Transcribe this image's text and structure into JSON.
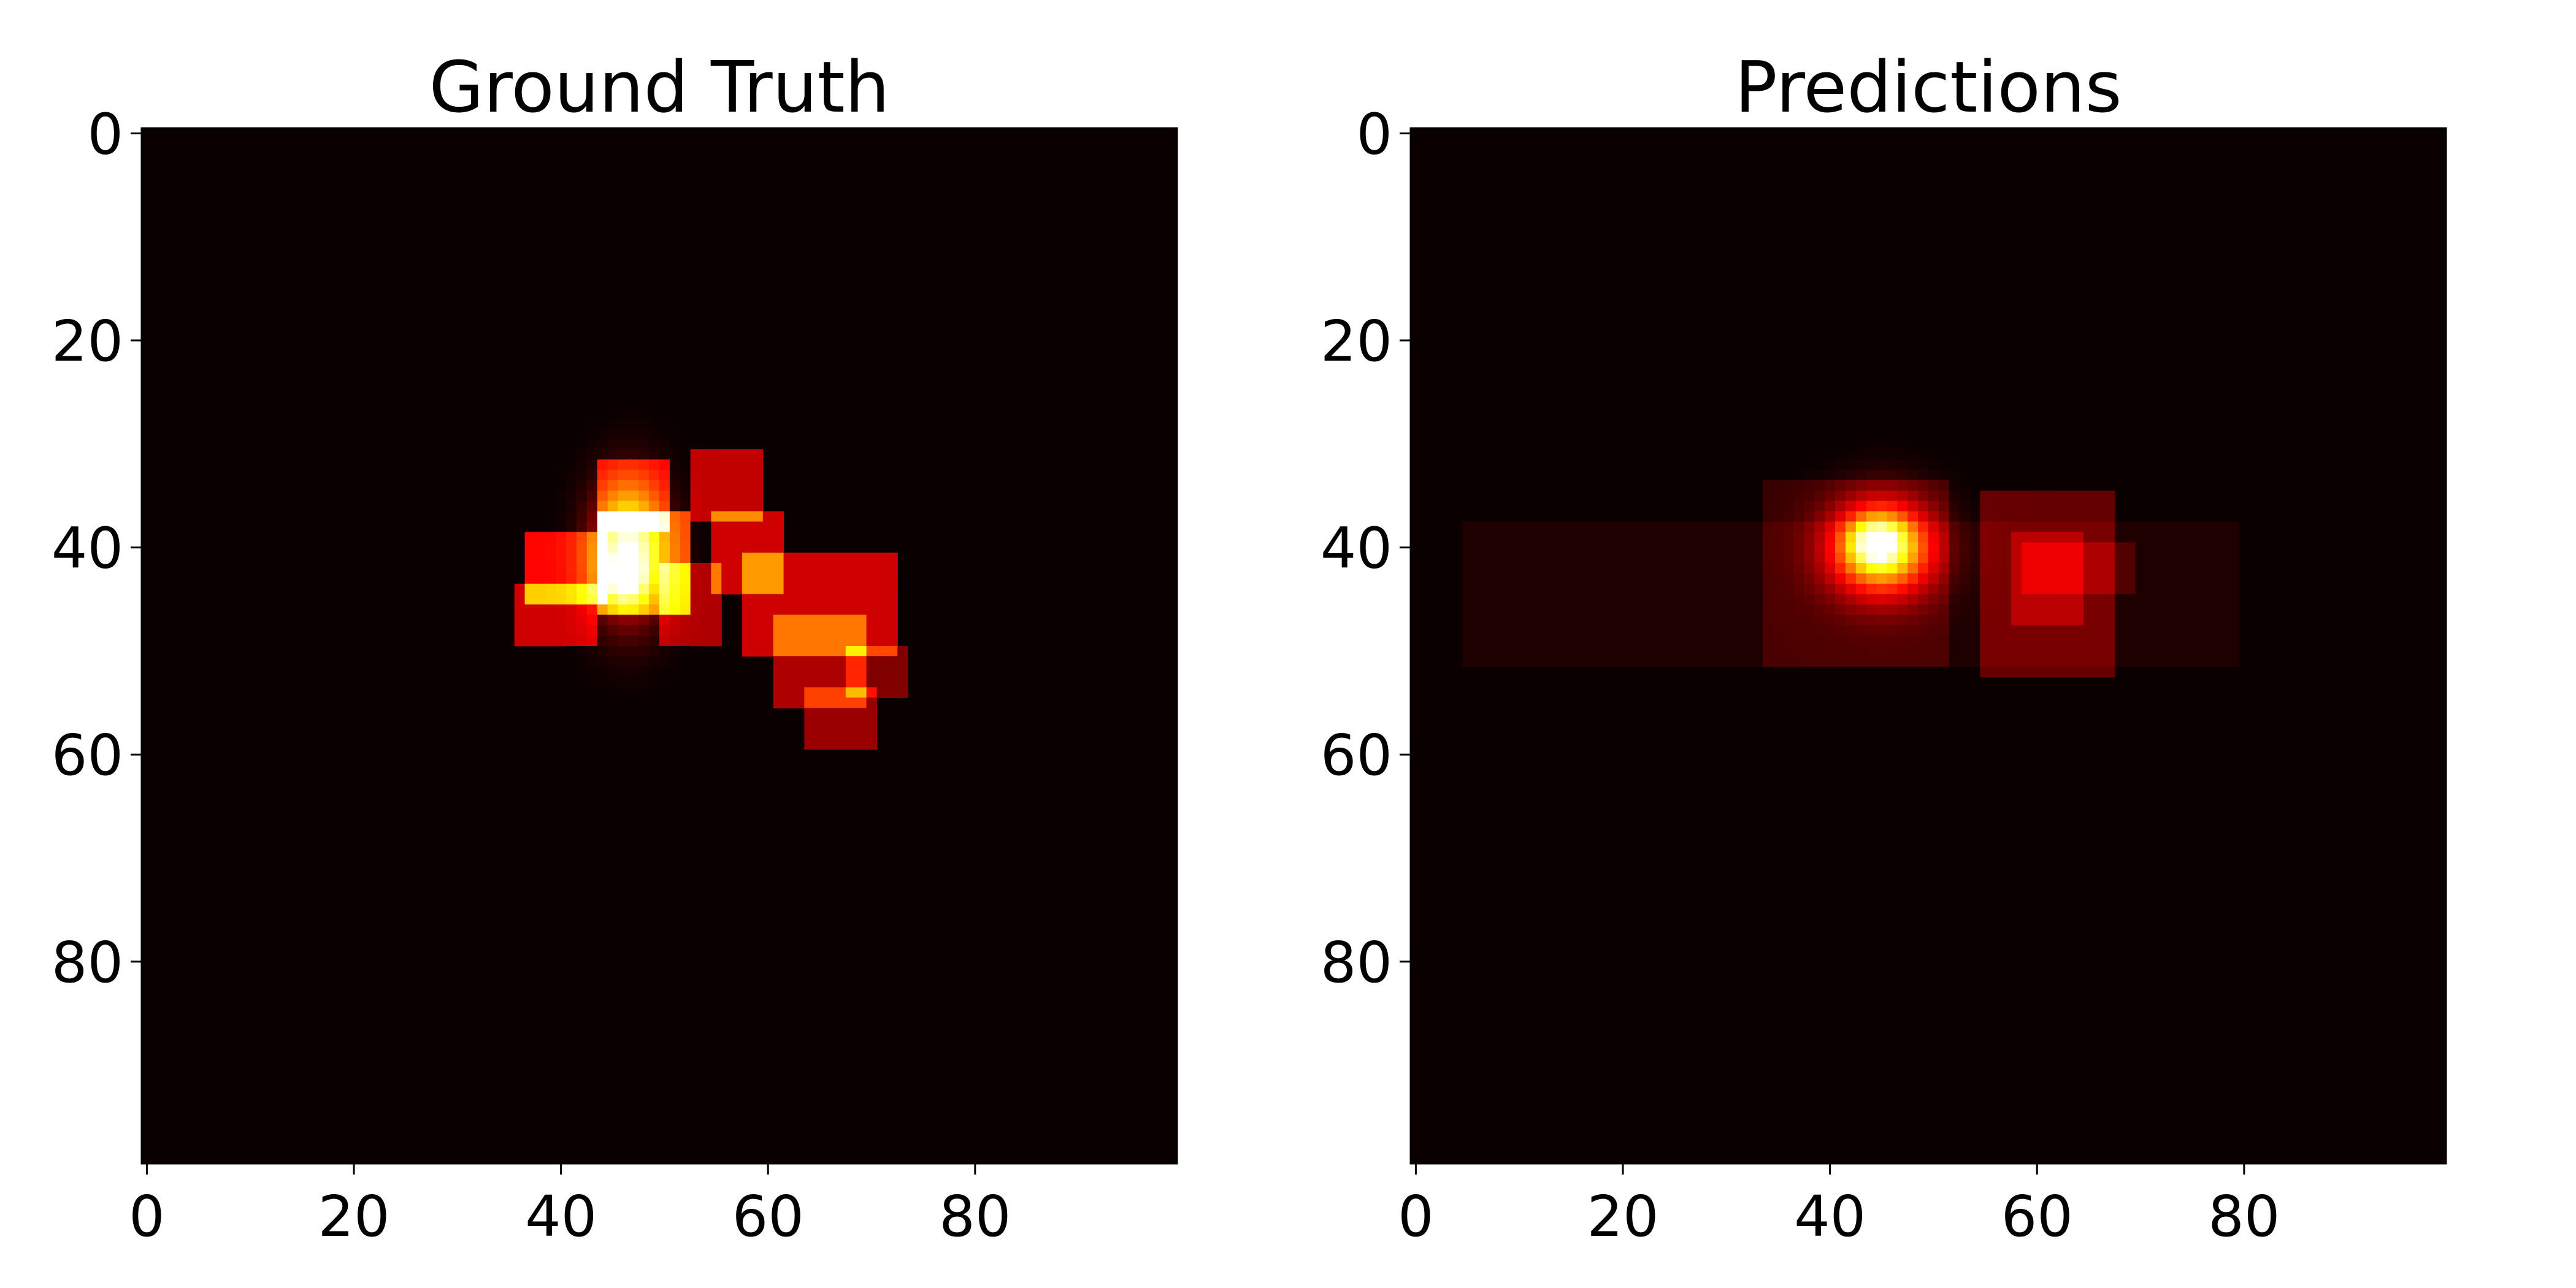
{
  "chart_data": [
    {
      "type": "heatmap",
      "title": "Ground Truth",
      "colormap": "hot",
      "grid": false,
      "xlim": [
        0,
        100
      ],
      "ylim": [
        100,
        0
      ],
      "x_ticks": [
        0,
        20,
        40,
        60,
        80
      ],
      "y_ticks": [
        0,
        20,
        40,
        60,
        80
      ],
      "peak": {
        "x": 47,
        "y": 43
      },
      "regions": [
        {
          "x": [
            36,
            44
          ],
          "y": [
            44,
            50
          ],
          "value": 0.3
        },
        {
          "x": [
            37,
            45
          ],
          "y": [
            39,
            46
          ],
          "value": 0.38
        },
        {
          "x": [
            44,
            53
          ],
          "y": [
            37,
            47
          ],
          "value": 0.45
        },
        {
          "x": [
            44,
            51
          ],
          "y": [
            32,
            39
          ],
          "value": 0.35
        },
        {
          "x": [
            53,
            60
          ],
          "y": [
            31,
            38
          ],
          "value": 0.28
        },
        {
          "x": [
            50,
            56
          ],
          "y": [
            42,
            50
          ],
          "value": 0.25
        },
        {
          "x": [
            55,
            62
          ],
          "y": [
            37,
            45
          ],
          "value": 0.3
        },
        {
          "x": [
            58,
            73
          ],
          "y": [
            41,
            51
          ],
          "value": 0.3
        },
        {
          "x": [
            61,
            70
          ],
          "y": [
            47,
            56
          ],
          "value": 0.25
        },
        {
          "x": [
            64,
            71
          ],
          "y": [
            54,
            60
          ],
          "value": 0.22
        },
        {
          "x": [
            68,
            74
          ],
          "y": [
            50,
            55
          ],
          "value": 0.18
        }
      ],
      "blobs": [
        {
          "x": 47,
          "y": 41,
          "sx": 2.5,
          "sy": 4.5,
          "value": 0.55
        },
        {
          "x": 46.5,
          "y": 43.5,
          "sx": 1.3,
          "sy": 1.4,
          "value": 0.3
        }
      ]
    },
    {
      "type": "heatmap",
      "title": "Predictions",
      "colormap": "hot",
      "grid": false,
      "xlim": [
        0,
        100
      ],
      "ylim": [
        100,
        0
      ],
      "x_ticks": [
        0,
        20,
        40,
        60,
        80
      ],
      "y_ticks": [
        0,
        20,
        40,
        60,
        80
      ],
      "peak": {
        "x": 45,
        "y": 40
      },
      "regions": [
        {
          "x": [
            5,
            80
          ],
          "y": [
            38,
            52
          ],
          "value": 0.03
        },
        {
          "x": [
            34,
            52
          ],
          "y": [
            34,
            52
          ],
          "value": 0.07
        },
        {
          "x": [
            55,
            68
          ],
          "y": [
            35,
            53
          ],
          "value": 0.14
        },
        {
          "x": [
            58,
            65
          ],
          "y": [
            39,
            48
          ],
          "value": 0.1
        },
        {
          "x": [
            59,
            70
          ],
          "y": [
            40,
            45
          ],
          "value": 0.08
        }
      ],
      "blobs": [
        {
          "x": 45.5,
          "y": 40.5,
          "sx": 3.5,
          "sy": 3.2,
          "value": 0.75
        },
        {
          "x": 45,
          "y": 40,
          "sx": 1.6,
          "sy": 1.4,
          "value": 0.35
        }
      ]
    }
  ]
}
